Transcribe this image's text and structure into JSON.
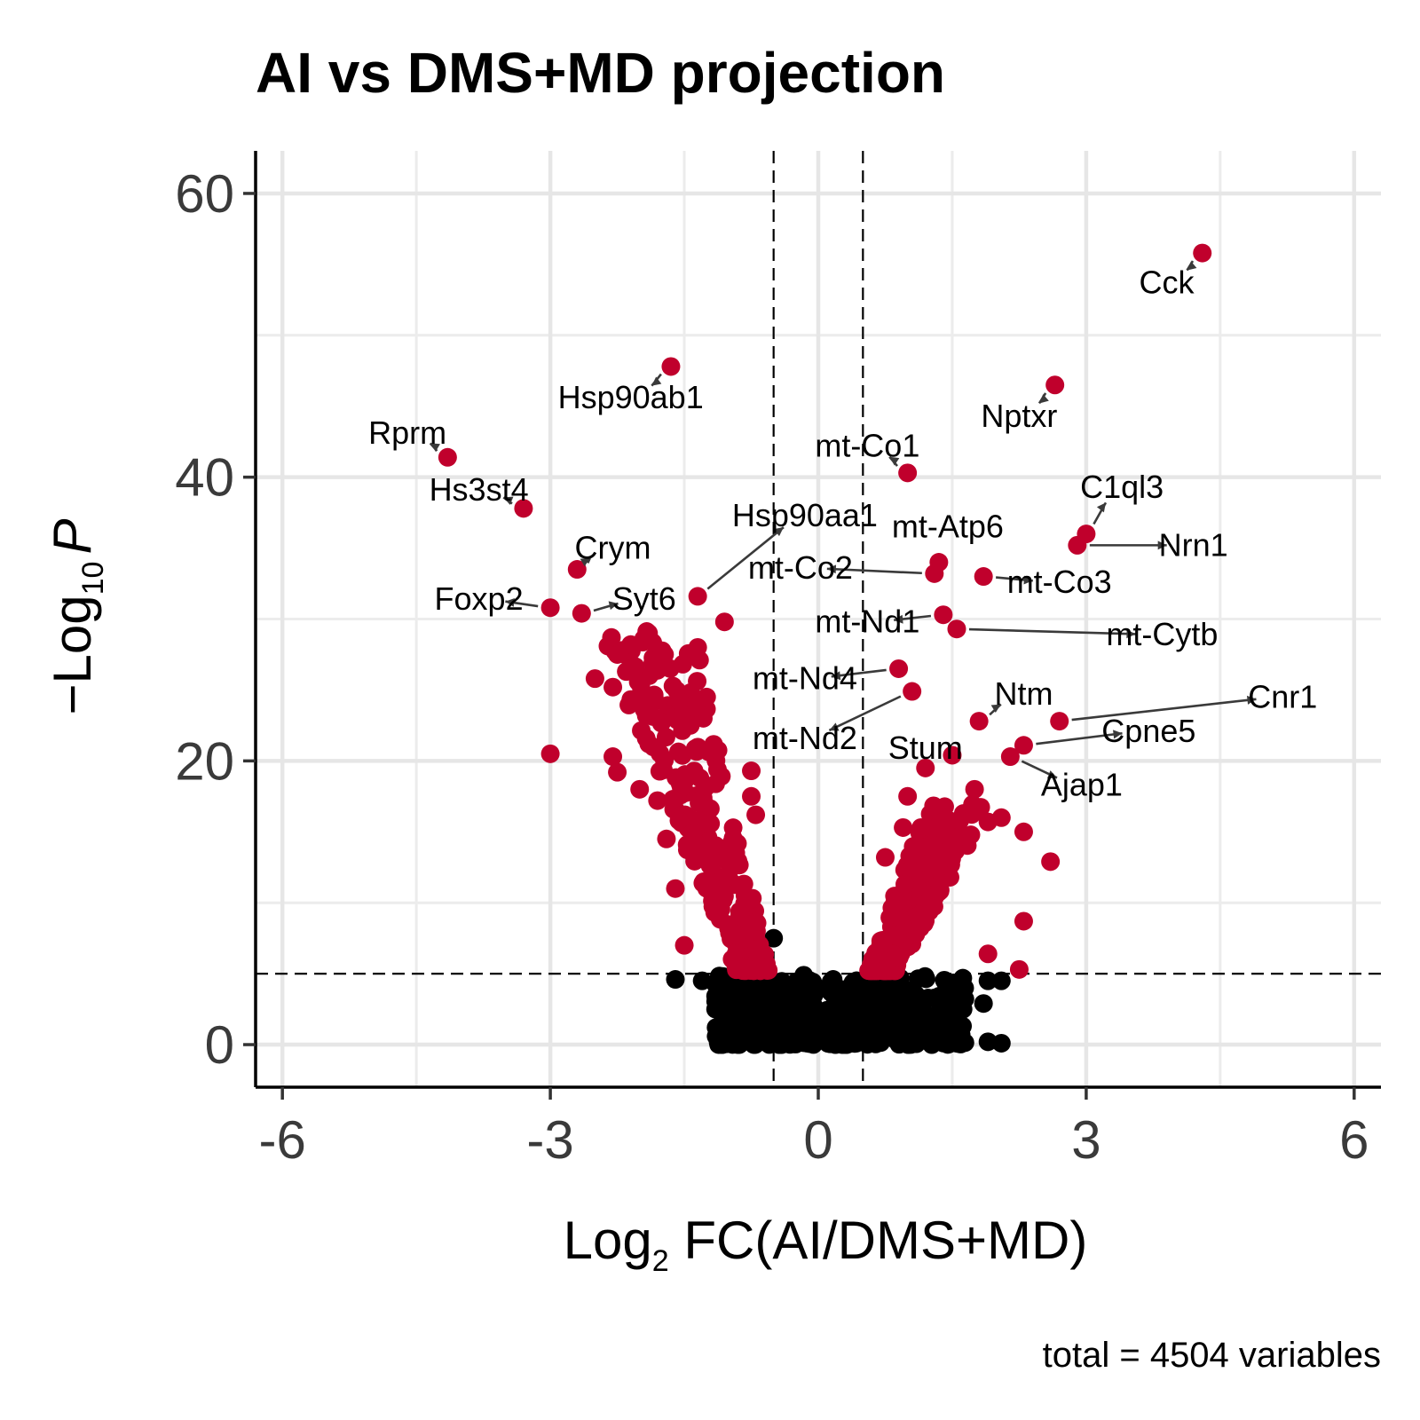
{
  "chart_data": {
    "type": "scatter",
    "title": "AI vs DMS+MD projection",
    "xlabel_main": "Log",
    "xlabel_sub": "2",
    "xlabel_rest": " FC(AI/DMS+MD)",
    "ylabel_prefix": "−Log",
    "ylabel_sub": "10",
    "ylabel_p": "P",
    "caption": "total = 4504 variables",
    "xlim": [
      -6.3,
      6.3
    ],
    "ylim": [
      -3,
      63
    ],
    "x_ticks": [
      -6,
      -3,
      0,
      3,
      6
    ],
    "x_tick_labels": [
      "-6",
      "-3",
      "0",
      "3",
      "6"
    ],
    "y_ticks": [
      0,
      20,
      40,
      60
    ],
    "y_tick_labels": [
      "0",
      "20",
      "40",
      "60"
    ],
    "fc_cutoffs": [
      -0.5,
      0.5
    ],
    "p_cutoff": 5,
    "grid": true,
    "colors": {
      "significant": "#c0002c",
      "not_significant": "#000000",
      "connector": "#3a3a3a"
    },
    "labeled_points": [
      {
        "gene": "Cck",
        "x": 4.3,
        "y": 55.8,
        "lx": 3.9,
        "ly": 53.7
      },
      {
        "gene": "Hsp90ab1",
        "x": -1.65,
        "y": 47.8,
        "lx": -2.1,
        "ly": 45.6
      },
      {
        "gene": "Nptxr",
        "x": 2.65,
        "y": 46.5,
        "lx": 2.25,
        "ly": 44.3
      },
      {
        "gene": "Rprm",
        "x": -4.15,
        "y": 41.4,
        "lx": -4.6,
        "ly": 43.1
      },
      {
        "gene": "mt-Co1",
        "x": 1.0,
        "y": 40.3,
        "lx": 0.55,
        "ly": 42.2
      },
      {
        "gene": "Hs3st4",
        "x": -3.3,
        "y": 37.8,
        "lx": -3.8,
        "ly": 39.1
      },
      {
        "gene": "C1ql3",
        "x": 3.0,
        "y": 36.0,
        "lx": 3.4,
        "ly": 39.3
      },
      {
        "gene": "Hsp90aa1",
        "x": -1.35,
        "y": 31.6,
        "lx": -0.15,
        "ly": 37.3
      },
      {
        "gene": "Nrn1",
        "x": 2.9,
        "y": 35.2,
        "lx": 4.2,
        "ly": 35.2
      },
      {
        "gene": "mt-Atp6",
        "x": 1.35,
        "y": 34.0,
        "lx": 1.45,
        "ly": 36.5
      },
      {
        "gene": "Crym",
        "x": -2.7,
        "y": 33.5,
        "lx": -2.3,
        "ly": 35.0
      },
      {
        "gene": "mt-Co2",
        "x": 1.3,
        "y": 33.2,
        "lx": -0.2,
        "ly": 33.6
      },
      {
        "gene": "mt-Co3",
        "x": 1.85,
        "y": 33.0,
        "lx": 2.7,
        "ly": 32.6
      },
      {
        "gene": "Foxp2",
        "x": -3.0,
        "y": 30.8,
        "lx": -3.8,
        "ly": 31.4
      },
      {
        "gene": "Syt6",
        "x": -2.65,
        "y": 30.4,
        "lx": -1.95,
        "ly": 31.4
      },
      {
        "gene": "mt-Nd1",
        "x": 1.4,
        "y": 30.3,
        "lx": 0.55,
        "ly": 29.8
      },
      {
        "gene": "mt-Cytb",
        "x": 1.55,
        "y": 29.3,
        "lx": 3.85,
        "ly": 28.9
      },
      {
        "gene": "mt-Nd4",
        "x": 0.9,
        "y": 26.5,
        "lx": -0.15,
        "ly": 25.8
      },
      {
        "gene": "mt-Nd2",
        "x": 1.05,
        "y": 24.9,
        "lx": -0.15,
        "ly": 21.6
      },
      {
        "gene": "Ntm",
        "x": 1.8,
        "y": 22.8,
        "lx": 2.3,
        "ly": 24.7
      },
      {
        "gene": "Cnr1",
        "x": 2.7,
        "y": 22.8,
        "lx": 5.2,
        "ly": 24.5
      },
      {
        "gene": "Cpne5",
        "x": 2.3,
        "y": 21.1,
        "lx": 3.7,
        "ly": 22.1
      },
      {
        "gene": "Stum",
        "x": 1.5,
        "y": 20.4,
        "lx": 1.2,
        "ly": 20.9
      },
      {
        "gene": "Ajap1",
        "x": 2.15,
        "y": 20.3,
        "lx": 2.95,
        "ly": 18.3
      }
    ]
  }
}
